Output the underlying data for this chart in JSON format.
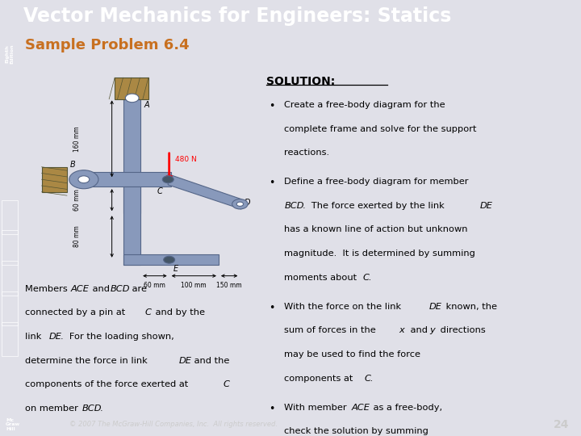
{
  "title": "Vector Mechanics for Engineers: Statics",
  "subtitle": "Sample Problem 6.4",
  "header_bg": "#4a5f82",
  "subheader_bg": "#c8cdd8",
  "sidebar_bg": "#c87020",
  "body_bg": "#e0e0e8",
  "footer_bg": "#4a5f82",
  "footer_text": "© 2007 The McGraw-Hill Companies, Inc.  All rights reserved.",
  "footer_page": "24",
  "footer_text_color": "#cccccc",
  "title_color": "#ffffff",
  "subtitle_color": "#c87020",
  "text_color": "#000000",
  "edition_text": "Eighth\nEdition",
  "frame_color": "#8899bb",
  "frame_edge": "#556688",
  "wall_color": "#aa8844"
}
